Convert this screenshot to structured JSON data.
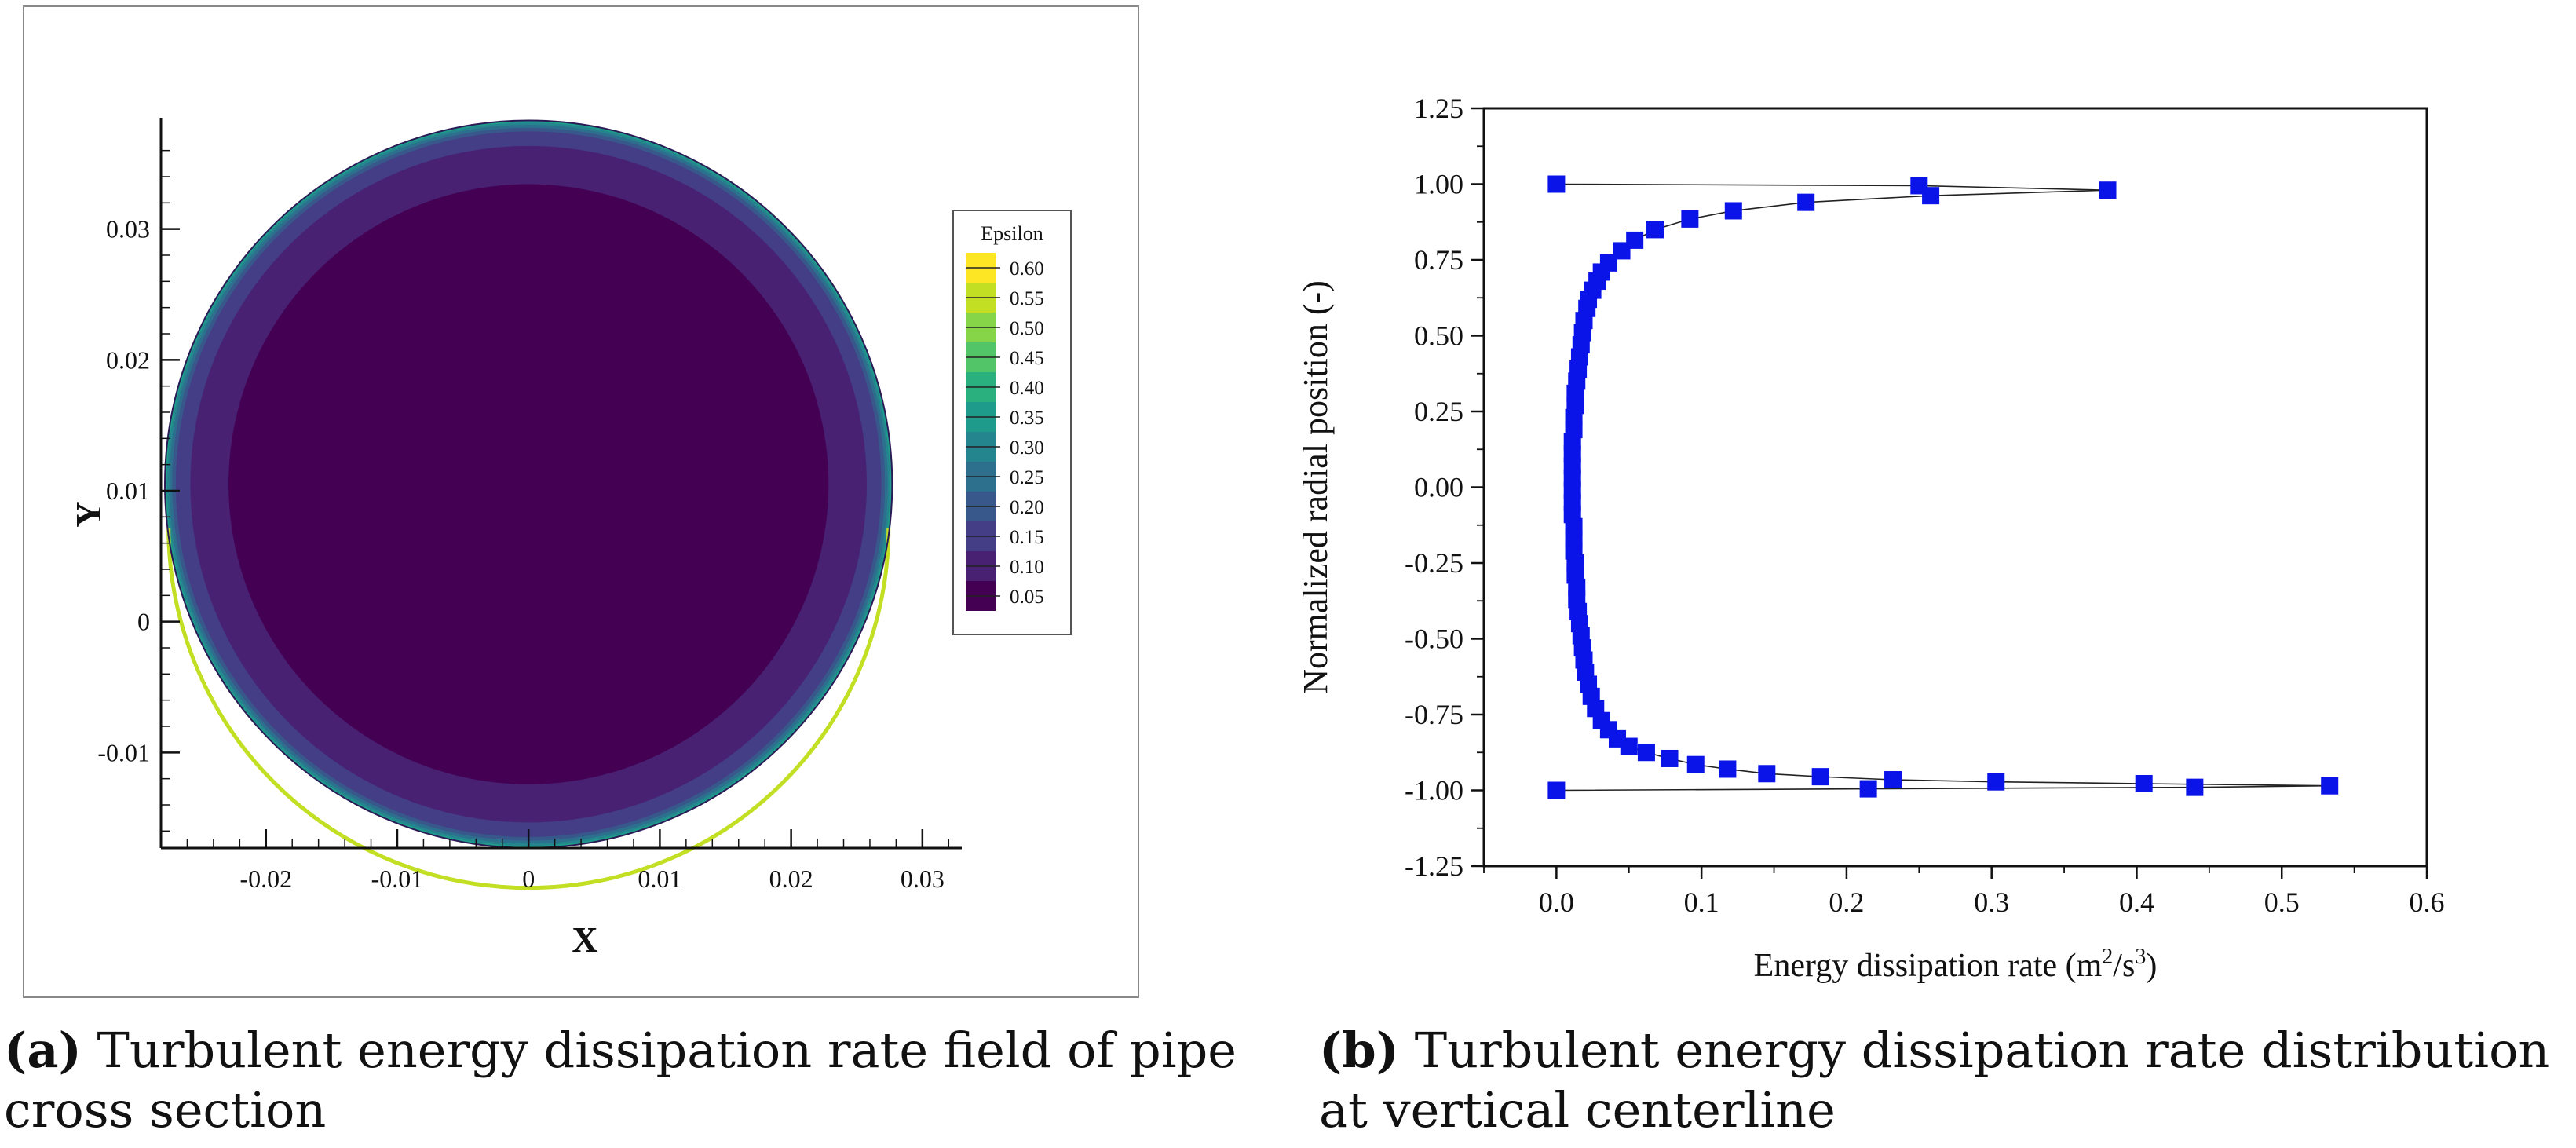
{
  "chart_data": [
    {
      "type": "heatmap",
      "description_label": "contour",
      "xlabel": "X",
      "ylabel": "Y",
      "x_ticks": [
        "-0.02",
        "-0.01",
        "0",
        "0.01",
        "0.02",
        "0.03"
      ],
      "x_tick_values": [
        -0.02,
        -0.01,
        0,
        0.01,
        0.02,
        0.03
      ],
      "y_ticks": [
        "0.03",
        "0.02",
        "0.01",
        "0",
        "-0.01"
      ],
      "y_tick_values": [
        0.03,
        0.02,
        0.01,
        0,
        -0.01
      ],
      "xlim": [
        -0.028,
        0.033
      ],
      "ylim": [
        -0.0173,
        0.0385
      ],
      "circle": {
        "center_x": 0.0,
        "center_y": 0.0105,
        "radius": 0.0277
      },
      "legend_title": "Epsilon",
      "legend_levels": [
        "0.60",
        "0.55",
        "0.50",
        "0.45",
        "0.40",
        "0.35",
        "0.30",
        "0.25",
        "0.20",
        "0.15",
        "0.10",
        "0.05"
      ],
      "legend_colors": [
        "#fde725",
        "#c2df23",
        "#86d549",
        "#52c569",
        "#2ab07f",
        "#1e9b8a",
        "#25858e",
        "#2d708e",
        "#38588c",
        "#433e85",
        "#482173",
        "#440154"
      ]
    },
    {
      "type": "scatter",
      "xlabel": "Energy dissipation rate (m²/s³)",
      "xlabel_main": "Energy dissipation rate (m",
      "xlabel_sup1": "2",
      "xlabel_mid": "/s",
      "xlabel_sup2": "3",
      "xlabel_end": ")",
      "ylabel": "Normalized radial position (-)",
      "xlim": [
        -0.05,
        0.6
      ],
      "ylim": [
        -1.25,
        1.25
      ],
      "x_ticks": [
        "0.0",
        "0.1",
        "0.2",
        "0.3",
        "0.4",
        "0.5",
        "0.6"
      ],
      "x_tick_values": [
        0.0,
        0.1,
        0.2,
        0.3,
        0.4,
        0.5,
        0.6
      ],
      "y_ticks": [
        "1.25",
        "1.00",
        "0.75",
        "0.50",
        "0.25",
        "0.00",
        "-0.25",
        "-0.50",
        "-0.75",
        "-1.00",
        "-1.25"
      ],
      "y_tick_values": [
        1.25,
        1.0,
        0.75,
        0.5,
        0.25,
        0.0,
        -0.25,
        -0.5,
        -0.75,
        -1.0,
        -1.25
      ],
      "marker_color": "#0a14e8",
      "series": [
        {
          "name": "centerline",
          "points": [
            [
              0.0,
              1.0
            ],
            [
              0.25,
              0.995
            ],
            [
              0.38,
              0.98
            ],
            [
              0.258,
              0.962
            ],
            [
              0.172,
              0.94
            ],
            [
              0.122,
              0.912
            ],
            [
              0.092,
              0.885
            ],
            [
              0.068,
              0.85
            ],
            [
              0.054,
              0.815
            ],
            [
              0.045,
              0.78
            ],
            [
              0.036,
              0.74
            ],
            [
              0.031,
              0.71
            ],
            [
              0.028,
              0.68
            ],
            [
              0.025,
              0.65
            ],
            [
              0.022,
              0.62
            ],
            [
              0.021,
              0.59
            ],
            [
              0.019,
              0.55
            ],
            [
              0.018,
              0.51
            ],
            [
              0.017,
              0.47
            ],
            [
              0.016,
              0.43
            ],
            [
              0.015,
              0.39
            ],
            [
              0.014,
              0.35
            ],
            [
              0.013,
              0.31
            ],
            [
              0.013,
              0.27
            ],
            [
              0.012,
              0.23
            ],
            [
              0.012,
              0.19
            ],
            [
              0.011,
              0.15
            ],
            [
              0.011,
              0.11
            ],
            [
              0.011,
              0.07
            ],
            [
              0.011,
              0.03
            ],
            [
              0.011,
              -0.01
            ],
            [
              0.011,
              -0.05
            ],
            [
              0.011,
              -0.09
            ],
            [
              0.012,
              -0.13
            ],
            [
              0.012,
              -0.17
            ],
            [
              0.012,
              -0.21
            ],
            [
              0.013,
              -0.25
            ],
            [
              0.013,
              -0.29
            ],
            [
              0.014,
              -0.33
            ],
            [
              0.014,
              -0.37
            ],
            [
              0.015,
              -0.41
            ],
            [
              0.016,
              -0.45
            ],
            [
              0.017,
              -0.49
            ],
            [
              0.018,
              -0.53
            ],
            [
              0.019,
              -0.57
            ],
            [
              0.02,
              -0.61
            ],
            [
              0.022,
              -0.65
            ],
            [
              0.024,
              -0.69
            ],
            [
              0.027,
              -0.73
            ],
            [
              0.031,
              -0.77
            ],
            [
              0.036,
              -0.8
            ],
            [
              0.042,
              -0.83
            ],
            [
              0.05,
              -0.855
            ],
            [
              0.062,
              -0.875
            ],
            [
              0.078,
              -0.895
            ],
            [
              0.096,
              -0.915
            ],
            [
              0.118,
              -0.93
            ],
            [
              0.145,
              -0.945
            ],
            [
              0.182,
              -0.955
            ],
            [
              0.232,
              -0.965
            ],
            [
              0.303,
              -0.972
            ],
            [
              0.405,
              -0.978
            ],
            [
              0.533,
              -0.985
            ],
            [
              0.44,
              -0.99
            ],
            [
              0.215,
              -0.995
            ],
            [
              0.0,
              -1.0
            ]
          ]
        }
      ]
    }
  ],
  "captions": {
    "a_label": "(a)",
    "a_text": " Turbulent energy dissipation rate field of pipe cross section",
    "b_label": "(b)",
    "b_text": " Turbulent energy dissipation rate distribution at vertical centerline"
  }
}
